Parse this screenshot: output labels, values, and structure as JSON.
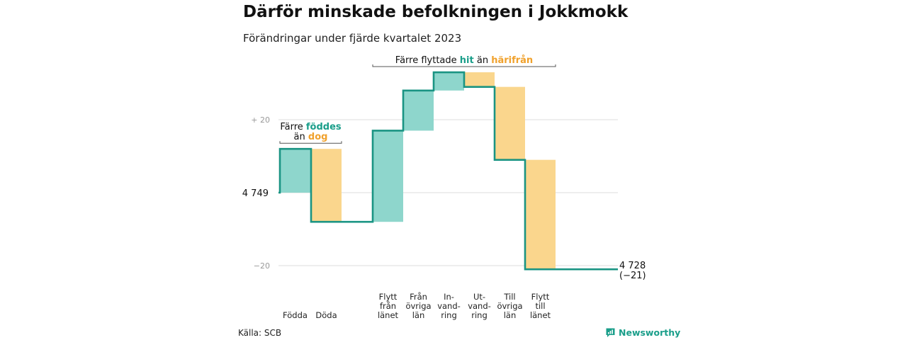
{
  "chart_data": {
    "type": "waterfall",
    "title": "Därför minskade befolkningen i Jokkmokk",
    "subtitle": "Förändringar under fjärde kvartalet 2023",
    "start_value": 4749,
    "start_label": "4 749",
    "end_label_lines": [
      "4 728",
      "(−21)"
    ],
    "ylim": [
      -20,
      20
    ],
    "y_ticks": [
      {
        "value": 20,
        "label": "+ 20"
      },
      {
        "value": 0,
        "label": ""
      },
      {
        "value": -20,
        "label": "−20"
      }
    ],
    "steps": [
      {
        "category_lines": [
          "Födda"
        ],
        "value": 12
      },
      {
        "category_lines": [
          "Döda"
        ],
        "value": -20
      },
      {
        "category_lines": [
          "Flytt",
          "från",
          "länet"
        ],
        "value": 25
      },
      {
        "category_lines": [
          "Från",
          "övriga",
          "län"
        ],
        "value": 11
      },
      {
        "category_lines": [
          "In-",
          "vand-",
          "ring"
        ],
        "value": 5
      },
      {
        "category_lines": [
          "Ut-",
          "vand-",
          "ring"
        ],
        "value": -4
      },
      {
        "category_lines": [
          "Till",
          "övriga",
          "län"
        ],
        "value": -20
      },
      {
        "category_lines": [
          "Flytt",
          "till",
          "länet"
        ],
        "value": -30
      }
    ],
    "annotations": [
      {
        "from_step": 0,
        "to_step": 1,
        "lines": [
          [
            {
              "text": "Färre ",
              "style": "plain"
            },
            {
              "text": "föddes",
              "style": "in"
            }
          ],
          [
            {
              "text": "än ",
              "style": "plain"
            },
            {
              "text": "dog",
              "style": "out"
            }
          ]
        ]
      },
      {
        "from_step": 2,
        "to_step": 7,
        "lines": [
          [
            {
              "text": "Färre flyttade ",
              "style": "plain"
            },
            {
              "text": "hit",
              "style": "in"
            },
            {
              "text": " än ",
              "style": "plain"
            },
            {
              "text": "härifrån",
              "style": "out"
            }
          ]
        ]
      }
    ],
    "grid": true,
    "colors": {
      "in": "#8ed6cc",
      "out": "#fad68d",
      "line": "#1a9483",
      "in_text": "#1a9e8a",
      "out_text": "#f0a12c",
      "grid": "#dddddd"
    }
  },
  "source": "Källa: SCB",
  "brand": {
    "name": "Newsworthy",
    "icon": "newsworthy-logo-icon"
  }
}
